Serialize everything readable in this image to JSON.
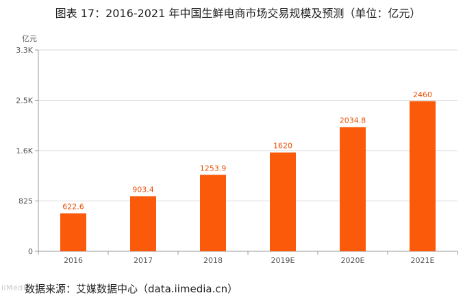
{
  "title": "图表 17：2016-2021 年中国生鲜电商市场交易规模及预测（单位：亿元）",
  "source": "数据来源：艾媒数据中心（data.iimedia.cn）",
  "colors": {
    "bar": "#fa5a0a",
    "label": "#e8520a",
    "grid": "#d9d9d9",
    "axis": "#999999"
  },
  "chart_data": {
    "type": "bar",
    "title": "图表 17：2016-2021 年中国生鲜电商市场交易规模及预测（单位：亿元）",
    "ylabel": "亿元",
    "xlabel": "",
    "categories": [
      "2016",
      "2017",
      "2018",
      "2019E",
      "2020E",
      "2021E"
    ],
    "values": [
      622.6,
      903.4,
      1253.9,
      1620,
      2034.8,
      2460
    ],
    "value_labels": [
      "622.6",
      "903.4",
      "1253.9",
      "1620",
      "2034.8",
      "2460"
    ],
    "ylim": [
      0,
      3300
    ],
    "yticks": [
      0,
      825,
      1650,
      2475,
      3300
    ],
    "ytick_labels": [
      "0",
      "825",
      "1.6K",
      "2.5K",
      "3.3K"
    ],
    "grid": true,
    "legend": "none"
  }
}
